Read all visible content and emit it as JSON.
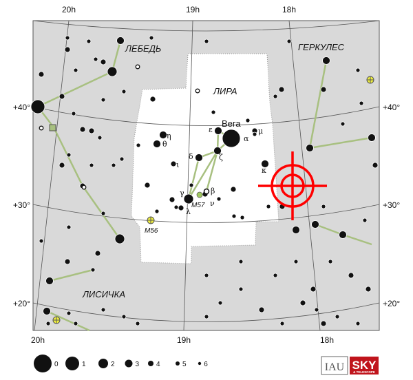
{
  "map": {
    "ra_labels_top": [
      "20h",
      "19h",
      "18h"
    ],
    "ra_labels_bottom": [
      "20h",
      "19h",
      "18h"
    ],
    "dec_labels": [
      "+40°",
      "+30°",
      "+20°"
    ],
    "constellations": {
      "main": "ЛИРА",
      "cygnus": "ЛЕБЕДЬ",
      "hercules": "ГЕРКУЛЕС",
      "vulpecula": "ЛИСИЧКА"
    },
    "star_names": {
      "vega": "Вега"
    },
    "greek": {
      "alpha": "α",
      "beta": "β",
      "gamma": "γ",
      "delta": "δ",
      "epsilon": "ε",
      "zeta": "ζ",
      "eta": "η",
      "theta": "θ",
      "iota": "ι",
      "kappa": "κ",
      "lambda": "λ",
      "mu": "μ",
      "nu": "ν"
    },
    "objects": {
      "m57": "M57",
      "m56": "M56"
    },
    "colors": {
      "background": "#d9d9d9",
      "constellation_area": "#ffffff",
      "lines": "#a8c080",
      "target": "#ff0000",
      "cluster": "#f0f040",
      "nebula": "#a0c860"
    }
  },
  "legend": {
    "magnitudes": [
      "0",
      "1",
      "2",
      "3",
      "4",
      "5",
      "6"
    ]
  },
  "logos": {
    "iau": "IAU",
    "sky": "SKY",
    "telescope": "& TELESCOPE"
  }
}
